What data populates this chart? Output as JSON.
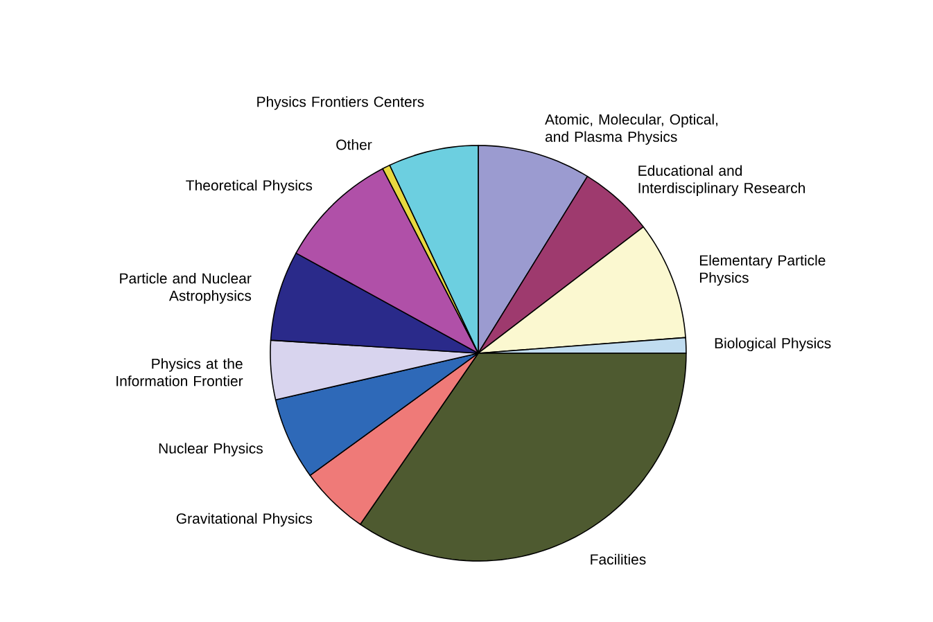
{
  "chart_data": {
    "type": "pie",
    "categories": [
      "Atomic, Molecular, Optical, and Plasma Physics",
      "Educational and Interdisciplinary Research",
      "Elementary Particle Physics",
      "Biological Physics",
      "Facilities",
      "Gravitational Physics",
      "Nuclear Physics",
      "Physics at the Information Frontier",
      "Particle and Nuclear Astrophysics",
      "Theoretical Physics",
      "Other",
      "Physics Frontiers Centers"
    ],
    "values": [
      8.8,
      5.8,
      9.2,
      1.2,
      34.6,
      5.4,
      6.4,
      4.6,
      7.0,
      9.4,
      0.6,
      7.0
    ],
    "colors": [
      "#9b9bd0",
      "#9e3a6e",
      "#fbf8d0",
      "#c0dcf0",
      "#4e5a30",
      "#ef7a78",
      "#2e69b8",
      "#d8d4ee",
      "#2a2a8a",
      "#b050a8",
      "#e8d840",
      "#6ccfe0"
    ]
  }
}
